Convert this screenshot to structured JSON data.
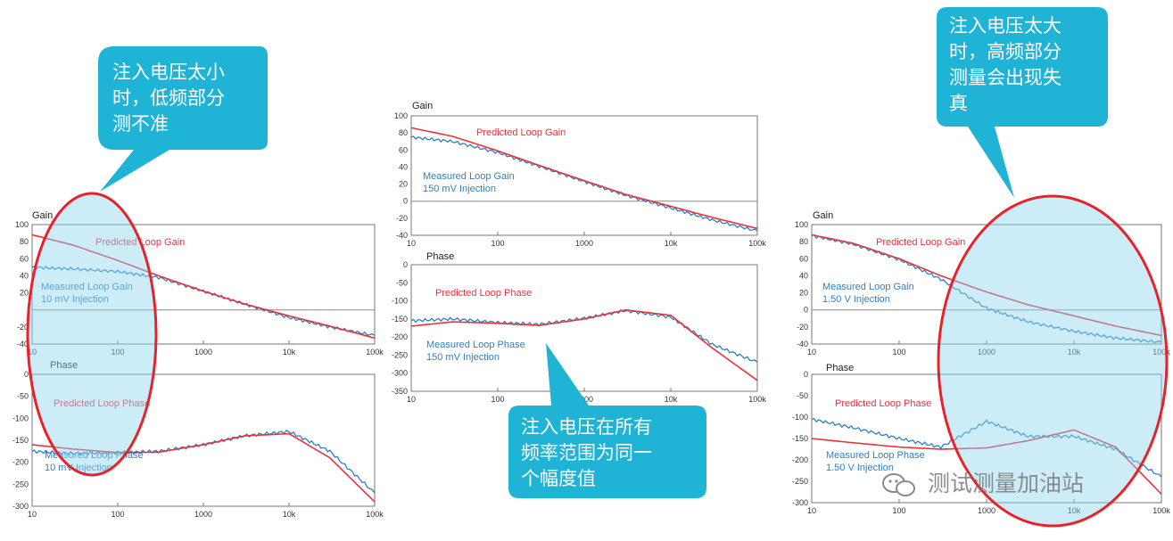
{
  "chart_data": [
    {
      "type": "line",
      "panel": "Gain",
      "title": "Gain",
      "xscale": "log",
      "xlim": [
        10,
        100000
      ],
      "ylim": [
        -40,
        100
      ],
      "yticks": [
        100,
        80,
        60,
        40,
        20,
        "",
        -20,
        -40
      ],
      "xtick_labels": [
        "10",
        "100",
        "1000",
        "10k",
        "100k"
      ],
      "zero_line": true,
      "series": [
        {
          "name": "Predicted Loop Gain",
          "color": "#e8323c",
          "x": [
            10,
            30,
            100,
            300,
            1000,
            3000,
            10000,
            30000,
            100000
          ],
          "y": [
            88,
            76,
            58,
            40,
            22,
            7,
            -7,
            -19,
            -33
          ]
        },
        {
          "name": "Measured Loop Gain",
          "note": "10 mV Injection",
          "color": "#2f7fc4",
          "x": [
            10,
            30,
            100,
            300,
            1000,
            3000,
            10000,
            30000,
            100000
          ],
          "y": [
            50,
            48,
            45,
            38,
            22,
            7,
            -9,
            -20,
            -30
          ]
        }
      ]
    },
    {
      "type": "line",
      "panel": "Phase",
      "title": "Phase",
      "xscale": "log",
      "xlim": [
        10,
        100000
      ],
      "ylim": [
        -300,
        0
      ],
      "yticks": [
        0,
        -50,
        -100,
        -150,
        -200,
        -250,
        -300
      ],
      "xtick_labels": [
        "10",
        "100",
        "1000",
        "10k",
        "100k"
      ],
      "series": [
        {
          "name": "Predicted Loop Phase",
          "color": "#e8323c",
          "x": [
            10,
            30,
            100,
            300,
            1000,
            3000,
            10000,
            30000,
            100000
          ],
          "y": [
            -160,
            -170,
            -178,
            -177,
            -160,
            -140,
            -135,
            -190,
            -290
          ]
        },
        {
          "name": "Measured Loop Phase",
          "note": "10 mV Injection",
          "color": "#2f7fc4",
          "x": [
            10,
            30,
            100,
            300,
            1000,
            3000,
            10000,
            30000,
            100000
          ],
          "y": [
            -175,
            -180,
            -178,
            -175,
            -160,
            -140,
            -130,
            -175,
            -270
          ]
        }
      ]
    },
    {
      "type": "line",
      "panel": "Gain",
      "title": "Gain",
      "xscale": "log",
      "xlim": [
        10,
        100000
      ],
      "ylim": [
        -40,
        100
      ],
      "yticks": [
        100,
        80,
        60,
        40,
        20,
        0,
        -20,
        -40
      ],
      "xtick_labels": [
        "10",
        "100",
        "1000",
        "10k",
        "100k"
      ],
      "zero_line": true,
      "series": [
        {
          "name": "Predicted Loop Gain",
          "color": "#e8323c",
          "x": [
            10,
            30,
            100,
            300,
            1000,
            3000,
            10000,
            30000,
            100000
          ],
          "y": [
            86,
            76,
            59,
            42,
            24,
            8,
            -6,
            -19,
            -32
          ]
        },
        {
          "name": "Measured Loop Gain",
          "note": "150 mV Injection",
          "color": "#2f7fc4",
          "x": [
            10,
            30,
            100,
            300,
            1000,
            3000,
            10000,
            30000,
            100000
          ],
          "y": [
            75,
            70,
            57,
            41,
            23,
            7,
            -8,
            -22,
            -35
          ]
        }
      ]
    },
    {
      "type": "line",
      "panel": "Phase",
      "title": "Phase",
      "xscale": "log",
      "xlim": [
        10,
        100000
      ],
      "ylim": [
        -350,
        0
      ],
      "yticks": [
        0,
        -50,
        -100,
        -150,
        -200,
        -250,
        -300,
        -350
      ],
      "xtick_labels": [
        "10",
        "100",
        "1000",
        "10k",
        "100k"
      ],
      "series": [
        {
          "name": "Predicted Loop Phase",
          "color": "#e8323c",
          "x": [
            10,
            30,
            100,
            300,
            1000,
            3000,
            10000,
            30000,
            100000
          ],
          "y": [
            -170,
            -158,
            -162,
            -168,
            -150,
            -125,
            -140,
            -230,
            -320
          ]
        },
        {
          "name": "Measured Loop Phase",
          "note": "150 mV Injection",
          "color": "#2f7fc4",
          "x": [
            10,
            30,
            100,
            300,
            1000,
            3000,
            10000,
            30000,
            100000
          ],
          "y": [
            -155,
            -150,
            -160,
            -165,
            -148,
            -127,
            -145,
            -220,
            -270
          ]
        }
      ]
    },
    {
      "type": "line",
      "panel": "Gain",
      "title": "Gain",
      "xscale": "log",
      "xlim": [
        10,
        100000
      ],
      "ylim": [
        -40,
        100
      ],
      "yticks": [
        100,
        80,
        60,
        40,
        20,
        0,
        -20,
        -40
      ],
      "xtick_labels": [
        "10",
        "100",
        "1000",
        "10k",
        "100k"
      ],
      "zero_line": true,
      "series": [
        {
          "name": "Predicted Loop Gain",
          "color": "#e8323c",
          "x": [
            10,
            30,
            100,
            300,
            1000,
            3000,
            10000,
            30000,
            100000
          ],
          "y": [
            88,
            78,
            60,
            40,
            21,
            6,
            -7,
            -19,
            -30
          ]
        },
        {
          "name": "Measured Loop Gain",
          "note": "1.50 V Injection",
          "color": "#2f7fc4",
          "x": [
            10,
            30,
            100,
            300,
            1000,
            3000,
            10000,
            30000,
            100000
          ],
          "y": [
            87,
            77,
            59,
            36,
            2,
            -14,
            -25,
            -33,
            -38
          ]
        }
      ]
    },
    {
      "type": "line",
      "panel": "Phase",
      "title": "Phase",
      "xscale": "log",
      "xlim": [
        10,
        100000
      ],
      "ylim": [
        -300,
        0
      ],
      "yticks": [
        0,
        -50,
        -100,
        -150,
        -200,
        -250,
        -300
      ],
      "xtick_labels": [
        "10",
        "100",
        "1000",
        "10k",
        "100k"
      ],
      "series": [
        {
          "name": "Predicted Loop Phase",
          "color": "#e8323c",
          "x": [
            10,
            30,
            100,
            300,
            1000,
            3000,
            10000,
            30000,
            100000
          ],
          "y": [
            -150,
            -160,
            -170,
            -175,
            -172,
            -155,
            -130,
            -170,
            -280
          ]
        },
        {
          "name": "Measured Loop Phase",
          "note": "1.50 V Injection",
          "color": "#2f7fc4",
          "x": [
            10,
            30,
            100,
            300,
            1000,
            3000,
            10000,
            30000,
            100000
          ],
          "y": [
            -105,
            -125,
            -150,
            -170,
            -110,
            -145,
            -145,
            -175,
            -240
          ]
        }
      ]
    }
  ],
  "callouts": [
    {
      "text": "注入电压太小时，低频部分测不准",
      "lines": [
        "注入电压太小",
        "时，低频部分",
        "测不准"
      ],
      "color": "#1fb3d6"
    },
    {
      "text": "注入电压在所有频率范围为同一个幅度值",
      "lines": [
        "注入电压在所有",
        "频率范围为同一",
        "个幅度值"
      ],
      "color": "#1fb3d6"
    },
    {
      "text": "注入电压太大时，高频部分测量会出现失真",
      "lines": [
        "注入电压太大",
        "时，高频部分",
        "测量会出现失",
        "真"
      ],
      "color": "#1fb3d6"
    }
  ],
  "watermark": {
    "text": "测试测量加油站",
    "icon": "wechat-icon"
  },
  "highlight_color": "#e8222a"
}
